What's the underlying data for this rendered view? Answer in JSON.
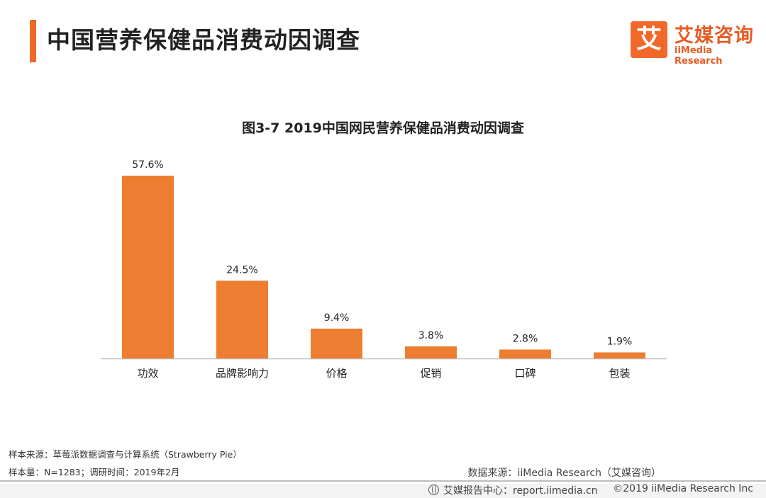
{
  "page_title": "中国营养保健品消费动因调查",
  "logo": {
    "box_char": "艾",
    "cn": "艾媒咨询",
    "en": "iiMedia Research"
  },
  "colors": {
    "accent": "#f0692a",
    "bar": "#ed7d31",
    "axis": "#bfbfbf"
  },
  "chart_data": {
    "type": "bar",
    "title": "图3-7 2019中国网民营养保健品消费动因调查",
    "categories": [
      "功效",
      "品牌影响力",
      "价格",
      "促销",
      "口碑",
      "包装"
    ],
    "values": [
      57.6,
      24.5,
      9.4,
      3.8,
      2.8,
      1.9
    ],
    "value_suffix": "%",
    "xlabel": "",
    "ylabel": "",
    "ylim": [
      0,
      60
    ],
    "grid": false,
    "legend": "none"
  },
  "footer": {
    "sample_source": "样本来源：草莓派数据调查与计算系统（Strawberry Pie）",
    "sample_size": "样本量：N=1283；调研时间：2019年2月",
    "data_source": "数据来源：iiMedia Research（艾媒咨询）",
    "report_center": "艾媒报告中心：report.iimedia.cn",
    "copyright": "©2019  iiMedia Research  Inc"
  }
}
